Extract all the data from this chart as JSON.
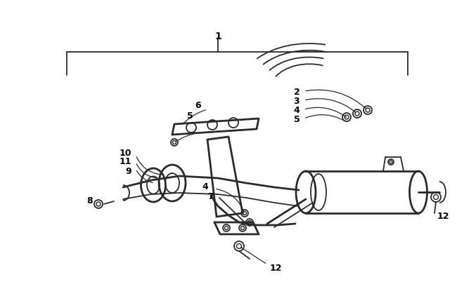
{
  "bg_color": "#ffffff",
  "line_color": "#2a2a2a",
  "label_color": "#000000",
  "fig_width": 6.5,
  "fig_height": 4.06,
  "dpi": 100
}
